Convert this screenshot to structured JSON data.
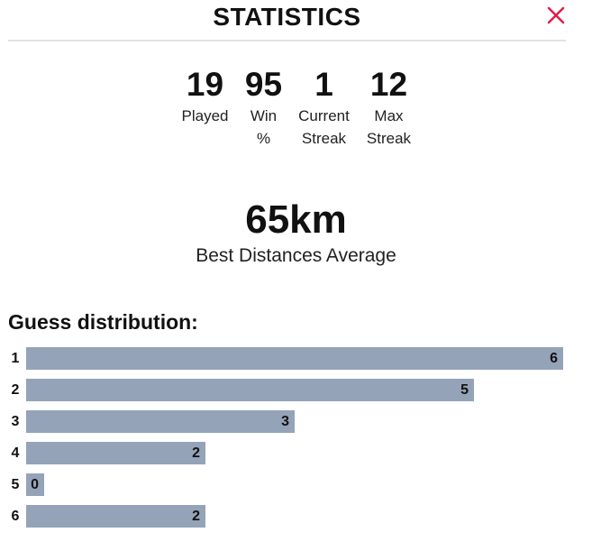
{
  "modal": {
    "title": "STATISTICS"
  },
  "stats": [
    {
      "value": "19",
      "label": "Played"
    },
    {
      "value": "95",
      "label": "Win\n%"
    },
    {
      "value": "1",
      "label": "Current\nStreak"
    },
    {
      "value": "12",
      "label": "Max\nStreak"
    }
  ],
  "best": {
    "value": "65km",
    "label": "Best Distances Average"
  },
  "distribution": {
    "title": "Guess distribution:",
    "rows": [
      {
        "guess": "1",
        "count": 6
      },
      {
        "guess": "2",
        "count": 5
      },
      {
        "guess": "3",
        "count": 3
      },
      {
        "guess": "4",
        "count": 2
      },
      {
        "guess": "5",
        "count": 0
      },
      {
        "guess": "6",
        "count": 2
      }
    ]
  },
  "colors": {
    "bar": "#94a3b8",
    "close": "#e11d48"
  },
  "icons": {
    "close": "close-icon"
  }
}
